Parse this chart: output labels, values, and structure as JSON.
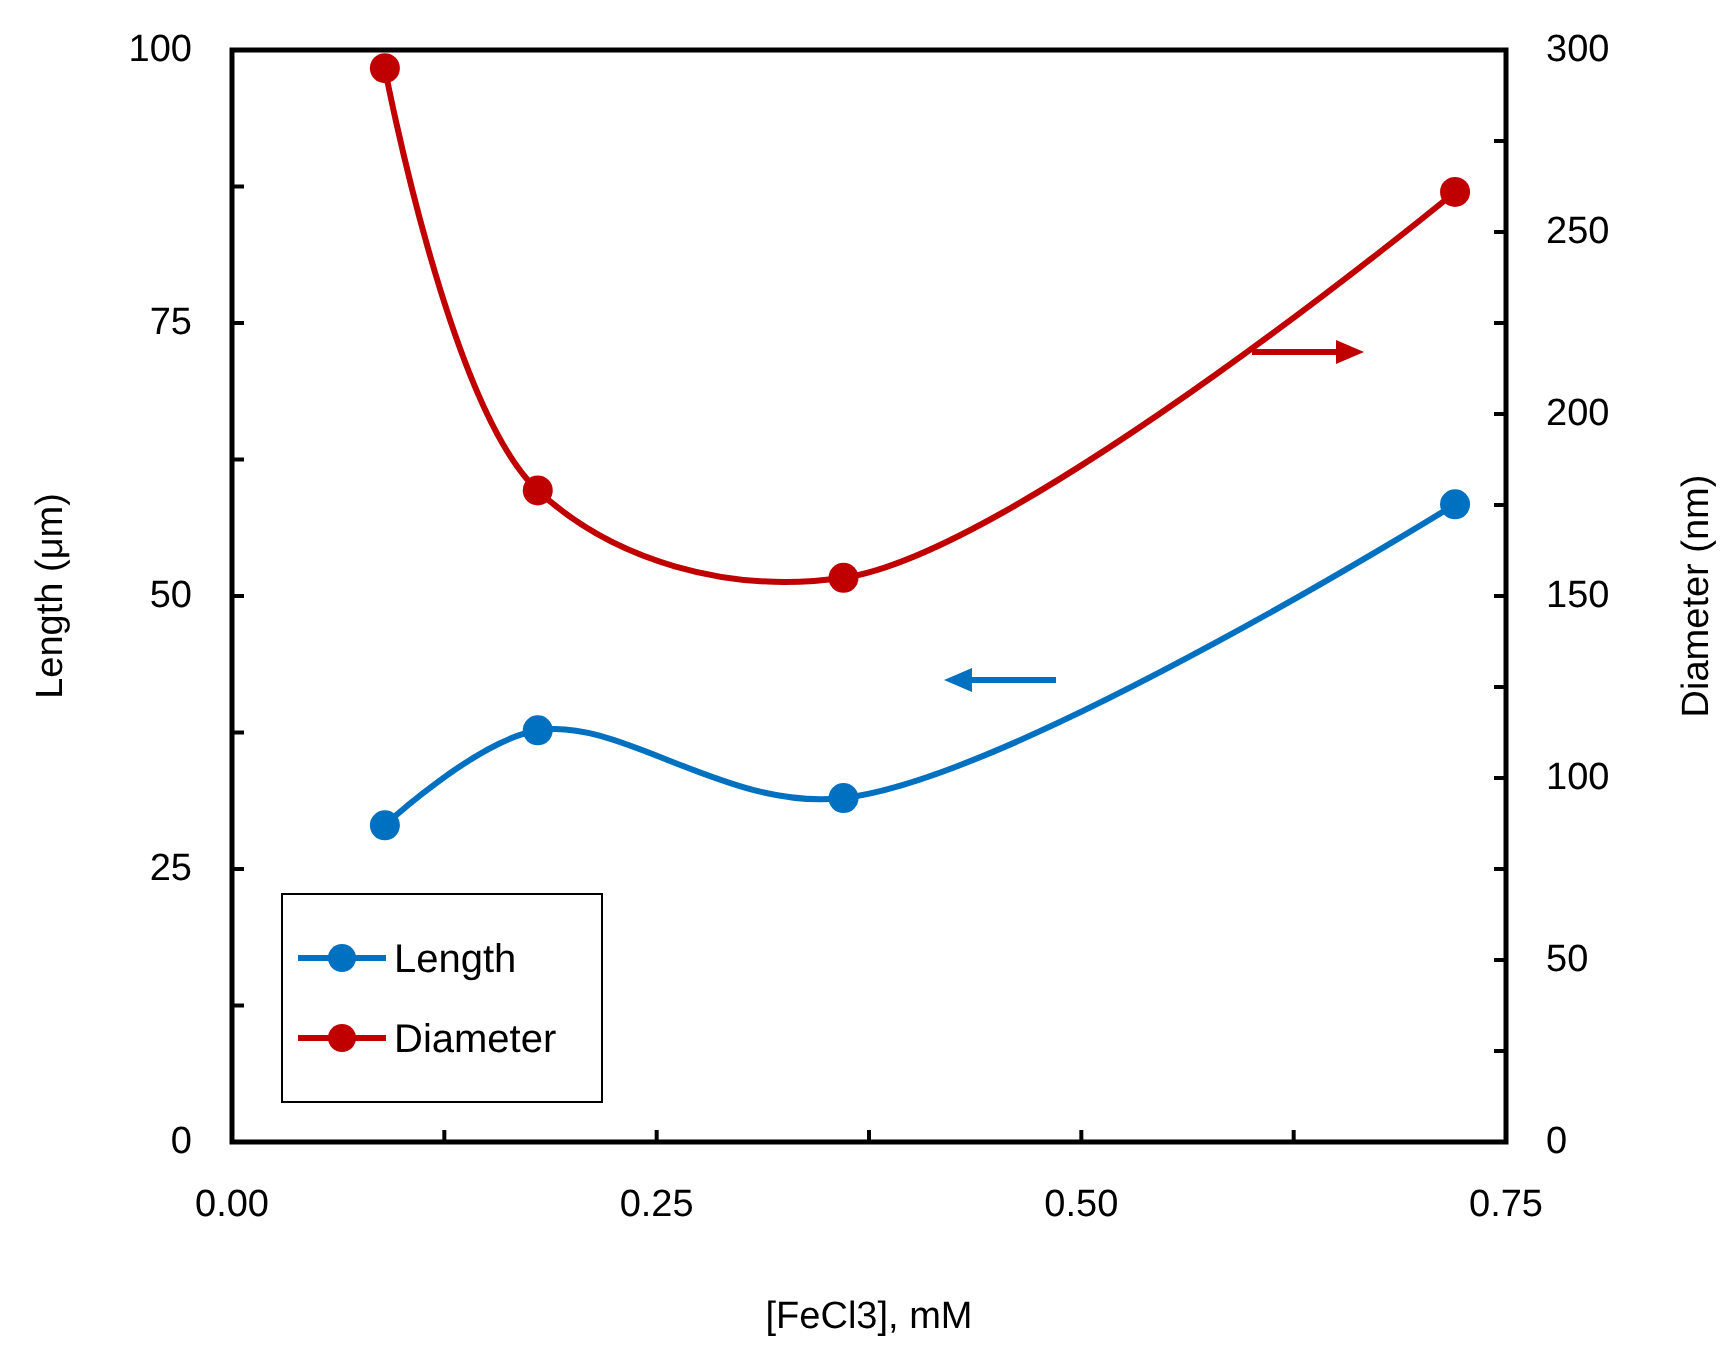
{
  "chart_data": {
    "type": "line",
    "xlabel": "[FeCl3], mM",
    "ylabel": "Length (μm)",
    "y2label": "Diameter (nm)",
    "x": [
      0.09,
      0.18,
      0.36,
      0.72
    ],
    "series": [
      {
        "name": "Length",
        "color": "#0070c0",
        "values": [
          29.0,
          37.7,
          31.5,
          58.4
        ]
      },
      {
        "name": "Diameter",
        "color": "#c00000",
        "axis": "y2",
        "values": [
          295,
          179,
          155,
          261
        ]
      }
    ],
    "xlim": [
      0,
      0.75
    ],
    "xticks": [
      {
        "value": 0,
        "label": "0.00"
      },
      {
        "value": 0.125,
        "label": null
      },
      {
        "value": 0.25,
        "label": "0.25"
      },
      {
        "value": 0.375,
        "label": null
      },
      {
        "value": 0.5,
        "label": "0.50"
      },
      {
        "value": 0.625,
        "label": null
      },
      {
        "value": 0.75,
        "label": "0.75"
      }
    ],
    "ylim": [
      0,
      100
    ],
    "yticks": [
      0,
      {
        "value": 12.5,
        "label": null
      },
      25,
      {
        "value": 37.5,
        "label": null
      },
      50,
      {
        "value": 62.5,
        "label": null
      },
      75,
      {
        "value": 87.5,
        "label": null
      },
      100
    ],
    "y2lim": [
      0,
      300
    ],
    "y2ticks": [
      0,
      {
        "value": 25,
        "label": null
      },
      50,
      {
        "value": 75,
        "label": null
      },
      100,
      {
        "value": 125,
        "label": null
      },
      150,
      {
        "value": 175,
        "label": null
      },
      200,
      {
        "value": 225,
        "label": null
      },
      250,
      {
        "value": 275,
        "label": null
      },
      300
    ],
    "marker": "circle",
    "line_style": "solid",
    "grid": false,
    "legend": "bottom left"
  }
}
